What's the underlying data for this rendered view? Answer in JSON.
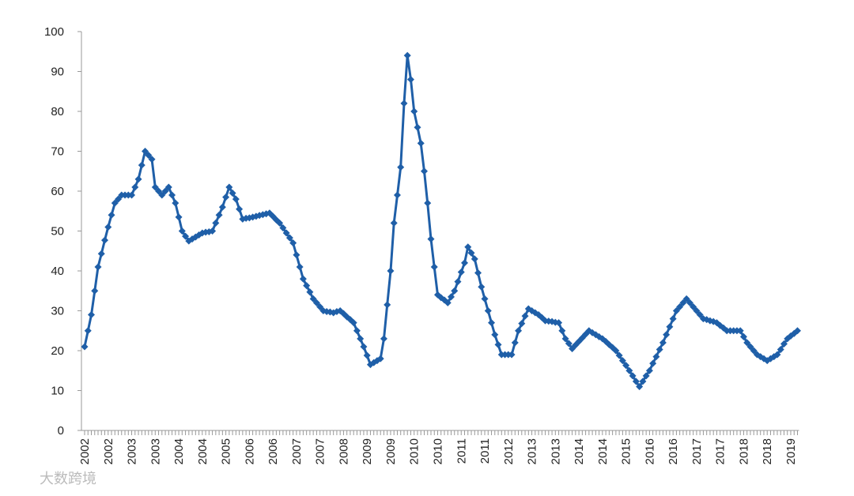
{
  "chart_data": {
    "type": "line",
    "categories": [
      "2002",
      null,
      null,
      null,
      null,
      null,
      null,
      "2002",
      null,
      null,
      null,
      null,
      null,
      null,
      "2003",
      null,
      null,
      null,
      null,
      null,
      null,
      "2003",
      null,
      null,
      null,
      null,
      null,
      null,
      "2004",
      null,
      null,
      null,
      null,
      null,
      null,
      "2004",
      null,
      null,
      null,
      null,
      null,
      null,
      "2005",
      null,
      null,
      null,
      null,
      null,
      null,
      "2006",
      null,
      null,
      null,
      null,
      null,
      null,
      "2006",
      null,
      null,
      null,
      null,
      null,
      null,
      "2007",
      null,
      null,
      null,
      null,
      null,
      null,
      "2007",
      null,
      null,
      null,
      null,
      null,
      null,
      "2008",
      null,
      null,
      null,
      null,
      null,
      null,
      "2009",
      null,
      null,
      null,
      null,
      null,
      null,
      "2009",
      null,
      null,
      null,
      null,
      null,
      null,
      "2010",
      null,
      null,
      null,
      null,
      null,
      null,
      "2010",
      null,
      null,
      null,
      null,
      null,
      null,
      "2011",
      null,
      null,
      null,
      null,
      null,
      null,
      "2011",
      null,
      null,
      null,
      null,
      null,
      null,
      "2012",
      null,
      null,
      null,
      null,
      null,
      null,
      "2013",
      null,
      null,
      null,
      null,
      null,
      null,
      "2013",
      null,
      null,
      null,
      null,
      null,
      null,
      "2014",
      null,
      null,
      null,
      null,
      null,
      null,
      "2014",
      null,
      null,
      null,
      null,
      null,
      null,
      "2015",
      null,
      null,
      null,
      null,
      null,
      null,
      "2016",
      null,
      null,
      null,
      null,
      null,
      null,
      "2016",
      null,
      null,
      null,
      null,
      null,
      null,
      "2017",
      null,
      null,
      null,
      null,
      null,
      null,
      "2017",
      null,
      null,
      null,
      null,
      null,
      null,
      "2018",
      null,
      null,
      null,
      null,
      null,
      null,
      "2018",
      null,
      null,
      null,
      null,
      null,
      null,
      "2019",
      null,
      null
    ],
    "series": [
      {
        "color": "#1f5fa8",
        "values": [
          21,
          25,
          29,
          35,
          41,
          44.3,
          47.7,
          51,
          54,
          57,
          58,
          59,
          59,
          59,
          59,
          61,
          63,
          66.5,
          70,
          69,
          68,
          61,
          60,
          59,
          60,
          61,
          59,
          57,
          53.5,
          50,
          48.7,
          47.5,
          48,
          48.5,
          49,
          49.5,
          49.7,
          49.8,
          50,
          52,
          54,
          56,
          58.5,
          61,
          59.5,
          58,
          55.5,
          53,
          53.2,
          53.3,
          53.5,
          53.7,
          53.9,
          54.1,
          54.3,
          54.5,
          53.7,
          52.8,
          52,
          50.8,
          49.5,
          48.3,
          47,
          44,
          41,
          38,
          36.3,
          34.7,
          33,
          32,
          31,
          30,
          29.8,
          29.7,
          29.5,
          29.8,
          30,
          29.3,
          28.5,
          27.8,
          27,
          25,
          23,
          21,
          18.8,
          16.5,
          17,
          17.5,
          18,
          23,
          31.5,
          40,
          52,
          59,
          66,
          82,
          94,
          88,
          80,
          76,
          72,
          65,
          57,
          48,
          41,
          34,
          33.3,
          32.7,
          32,
          33.5,
          35,
          37.3,
          39.7,
          42,
          46,
          44.5,
          43,
          39.5,
          36,
          33,
          30,
          27,
          24,
          21.5,
          19,
          19,
          19,
          19,
          22,
          25,
          26.8,
          28.7,
          30.5,
          30,
          29.5,
          29,
          28.3,
          27.5,
          27.4,
          27.3,
          27.1,
          27,
          25,
          23,
          21.8,
          20.5,
          21.4,
          22.3,
          23.2,
          24.1,
          25,
          24.5,
          24,
          23.5,
          23,
          22.3,
          21.5,
          20.8,
          20,
          18.8,
          17.5,
          16.3,
          15,
          13.7,
          12.3,
          11,
          12.3,
          13.7,
          15,
          16.8,
          18.5,
          20.3,
          22,
          24,
          26,
          28,
          30,
          31,
          32,
          33,
          32,
          31,
          30,
          29,
          28,
          27.8,
          27.5,
          27.3,
          27,
          26.3,
          25.7,
          25,
          25,
          25,
          25,
          25,
          23.5,
          22,
          21,
          20,
          19,
          18.5,
          18,
          17.5,
          18,
          18.5,
          19,
          20.3,
          21.7,
          23,
          23.7,
          24.3,
          25
        ]
      }
    ],
    "ylim": [
      0,
      100
    ],
    "yticks": [
      0,
      10,
      20,
      30,
      40,
      50,
      60,
      70,
      80,
      90,
      100
    ],
    "grid": false,
    "watermark": "大数跨境"
  }
}
